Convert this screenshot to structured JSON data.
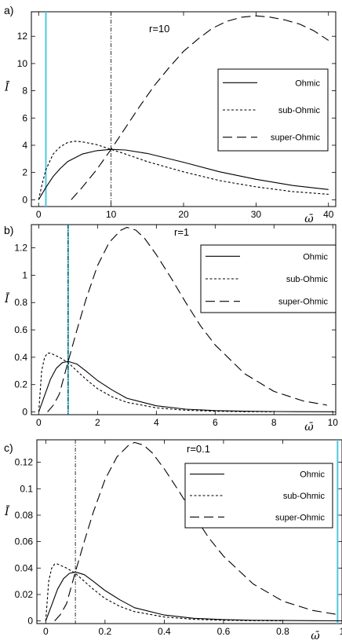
{
  "colors": {
    "vline": "#4fc8dc",
    "ink": "#000000"
  },
  "chart_data": [
    {
      "type": "line",
      "panel_label": "a)",
      "annotation": "r=10",
      "xlabel": "ω̄",
      "ylabel": "Ī",
      "xlim": [
        -1,
        41
      ],
      "ylim": [
        -0.5,
        13.8
      ],
      "xticks": [
        0,
        10,
        20,
        30,
        40
      ],
      "yticks": [
        0,
        2,
        4,
        6,
        8,
        10,
        12
      ],
      "vline_cyan": 1,
      "vline_dashdot": 10,
      "legend": [
        "Ohmic",
        "sub-Ohmic",
        "super-Ohmic"
      ],
      "series": [
        {
          "name": "Ohmic",
          "style": "solid",
          "x": [
            0,
            1,
            2,
            3,
            4,
            6,
            8,
            10,
            12,
            15,
            20,
            25,
            30,
            35,
            40
          ],
          "y": [
            0,
            0.9,
            1.7,
            2.3,
            2.8,
            3.35,
            3.6,
            3.7,
            3.65,
            3.4,
            2.75,
            2.05,
            1.5,
            1.05,
            0.75
          ]
        },
        {
          "name": "sub-Ohmic",
          "style": "short-dash",
          "x": [
            0,
            0.5,
            1,
            2,
            3,
            4,
            5,
            6,
            8,
            10,
            12,
            15,
            20,
            25,
            30,
            35,
            40
          ],
          "y": [
            0,
            1.2,
            2.2,
            3.35,
            3.9,
            4.2,
            4.3,
            4.25,
            4.05,
            3.7,
            3.35,
            2.8,
            2.05,
            1.4,
            0.95,
            0.6,
            0.4
          ]
        },
        {
          "name": "super-Ohmic",
          "style": "long-dash",
          "x": [
            4.5,
            6,
            8,
            10,
            12,
            14,
            16,
            18,
            20,
            22,
            24,
            26,
            28,
            30,
            32,
            34,
            36,
            38,
            40
          ],
          "y": [
            0,
            0.9,
            2.2,
            3.7,
            5.3,
            6.9,
            8.4,
            9.7,
            10.9,
            11.8,
            12.6,
            13.1,
            13.4,
            13.5,
            13.4,
            13.2,
            12.9,
            12.4,
            11.7
          ]
        }
      ]
    },
    {
      "type": "line",
      "panel_label": "b)",
      "annotation": "r=1",
      "xlabel": "ω̄",
      "ylabel": "Ī",
      "xlim": [
        -0.25,
        10.1
      ],
      "ylim": [
        -0.02,
        1.37
      ],
      "xticks": [
        0,
        2,
        4,
        6,
        8,
        10
      ],
      "ytick_labels": [
        "0",
        "0.2",
        "0.4",
        "0.6",
        "0.8",
        "1",
        "1.2"
      ],
      "yticks": [
        0,
        0.2,
        0.4,
        0.6,
        0.8,
        1.0,
        1.2
      ],
      "vline_cyan": 1,
      "vline_dashdot": 1,
      "legend": [
        "Ohmic",
        "sub-Ohmic",
        "super-Ohmic"
      ],
      "series": [
        {
          "name": "Ohmic",
          "style": "solid",
          "x": [
            0,
            0.2,
            0.4,
            0.6,
            0.8,
            1.0,
            1.3,
            1.6,
            2,
            2.5,
            3,
            4,
            5,
            6,
            7,
            8,
            9,
            10
          ],
          "y": [
            0,
            0.12,
            0.24,
            0.32,
            0.36,
            0.37,
            0.35,
            0.3,
            0.23,
            0.16,
            0.1,
            0.045,
            0.02,
            0.01,
            0.005,
            0.003,
            0.002,
            0.001
          ]
        },
        {
          "name": "sub-Ohmic",
          "style": "short-dash",
          "x": [
            0,
            0.1,
            0.2,
            0.3,
            0.4,
            0.5,
            0.7,
            1.0,
            1.3,
            1.6,
            2,
            2.5,
            3,
            4,
            5,
            6,
            7,
            8
          ],
          "y": [
            0,
            0.3,
            0.4,
            0.43,
            0.43,
            0.42,
            0.4,
            0.36,
            0.3,
            0.24,
            0.17,
            0.11,
            0.07,
            0.03,
            0.012,
            0.005,
            0.002,
            0.001
          ]
        },
        {
          "name": "super-Ohmic",
          "style": "long-dash",
          "x": [
            0.3,
            0.5,
            0.7,
            1.0,
            1.3,
            1.6,
            2.0,
            2.4,
            2.8,
            3.0,
            3.3,
            3.6,
            4.0,
            4.5,
            5,
            5.5,
            6,
            7,
            8,
            9,
            9.8
          ],
          "y": [
            0,
            0.05,
            0.13,
            0.37,
            0.6,
            0.82,
            1.07,
            1.24,
            1.33,
            1.35,
            1.33,
            1.27,
            1.15,
            0.98,
            0.8,
            0.63,
            0.49,
            0.28,
            0.15,
            0.08,
            0.05
          ]
        }
      ]
    },
    {
      "type": "line",
      "panel_label": "c)",
      "annotation": "r=0.1",
      "xlabel": "ω̄",
      "ylabel": "Ī",
      "xlim": [
        -0.03,
        1.0
      ],
      "ylim": [
        -0.002,
        0.137
      ],
      "xticks": [
        0,
        0.2,
        0.4,
        0.6,
        0.8,
        1
      ],
      "xtick_labels": [
        "0",
        "0.2",
        "0.4",
        "0.6",
        "0.8",
        "1"
      ],
      "yticks": [
        0,
        0.02,
        0.04,
        0.06,
        0.08,
        0.1,
        0.12
      ],
      "ytick_labels": [
        "0",
        "0.02",
        "0.04",
        "0.06",
        "0.08",
        "0.1",
        "0.12"
      ],
      "vline_cyan": 0.985,
      "vline_dashdot": 0.1,
      "legend": [
        "Ohmic",
        "sub-Ohmic",
        "super-Ohmic"
      ],
      "series": [
        {
          "name": "Ohmic",
          "style": "solid",
          "x": [
            0,
            0.02,
            0.04,
            0.06,
            0.08,
            0.1,
            0.13,
            0.16,
            0.2,
            0.25,
            0.3,
            0.4,
            0.5,
            0.6,
            0.7,
            0.8,
            0.9,
            1.0
          ],
          "y": [
            0,
            0.012,
            0.024,
            0.032,
            0.036,
            0.037,
            0.035,
            0.03,
            0.023,
            0.016,
            0.01,
            0.0045,
            0.002,
            0.001,
            0.0005,
            0.0003,
            0.0002,
            0.0001
          ]
        },
        {
          "name": "sub-Ohmic",
          "style": "short-dash",
          "x": [
            0,
            0.01,
            0.02,
            0.03,
            0.04,
            0.05,
            0.07,
            0.1,
            0.13,
            0.16,
            0.2,
            0.25,
            0.3,
            0.4,
            0.5,
            0.6,
            0.7,
            0.8
          ],
          "y": [
            0,
            0.03,
            0.04,
            0.043,
            0.043,
            0.042,
            0.04,
            0.036,
            0.03,
            0.024,
            0.017,
            0.011,
            0.007,
            0.003,
            0.0012,
            0.0005,
            0.0002,
            0.0001
          ]
        },
        {
          "name": "super-Ohmic",
          "style": "long-dash",
          "x": [
            0.03,
            0.05,
            0.07,
            0.1,
            0.13,
            0.16,
            0.2,
            0.24,
            0.28,
            0.3,
            0.33,
            0.36,
            0.4,
            0.45,
            0.5,
            0.55,
            0.6,
            0.7,
            0.8,
            0.9,
            0.98
          ],
          "y": [
            0,
            0.005,
            0.013,
            0.037,
            0.06,
            0.082,
            0.107,
            0.124,
            0.133,
            0.135,
            0.133,
            0.127,
            0.115,
            0.098,
            0.08,
            0.063,
            0.049,
            0.028,
            0.015,
            0.008,
            0.005
          ]
        }
      ]
    }
  ]
}
